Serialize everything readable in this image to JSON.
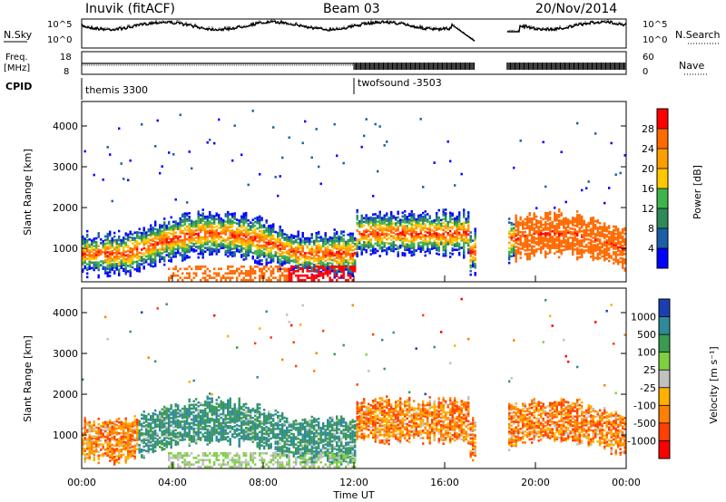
{
  "header": {
    "station": "Inuvik (fitACF)",
    "beam": "Beam 03",
    "date": "20/Nov/2014"
  },
  "top_panels": {
    "nsky_label": "N.Sky",
    "nsky_ticks": [
      "10^5",
      "10^0"
    ],
    "nsearch_label": "N.Search",
    "nsearch_ticks": [
      "10^5",
      "10^0"
    ],
    "freq_label_1": "Freq.",
    "freq_label_2": "[MHz]",
    "freq_ticks": [
      "18",
      "8"
    ],
    "nave_label": "Nave",
    "nave_ticks": [
      "60",
      "0"
    ],
    "cpid_label": "CPID",
    "cpid_segments": [
      {
        "name": "themis 3300",
        "start_hour": 0
      },
      {
        "name": "twofsound -3503",
        "start_hour": 12
      }
    ]
  },
  "chart_data": [
    {
      "type": "heatmap",
      "name": "power",
      "ylabel": "Slant Range [km]",
      "xlabel": "",
      "y_ticks": [
        "1000",
        "2000",
        "3000",
        "4000"
      ],
      "yrange_km": [
        180,
        4600
      ],
      "colorbar_label": "Power [dB]",
      "colorbar_ticks": [
        "28",
        "24",
        "20",
        "16",
        "12",
        "8",
        "4"
      ],
      "colorbar_colors": [
        "#ff0000",
        "#ff6a00",
        "#ff9e00",
        "#ffc800",
        "#3fb44a",
        "#2e8a58",
        "#1c5fa8",
        "#0000ff"
      ],
      "colormap_range": [
        0,
        32
      ]
    },
    {
      "type": "heatmap",
      "name": "velocity",
      "ylabel": "Slant Range [km]",
      "xlabel": "Time UT",
      "y_ticks": [
        "1000",
        "2000",
        "3000",
        "4000"
      ],
      "yrange_km": [
        180,
        4600
      ],
      "colorbar_label": "Velocity [m s⁻¹]",
      "colorbar_ticks": [
        "1000",
        "500",
        "100",
        "25",
        "-25",
        "-100",
        "-500",
        "-1000"
      ],
      "colorbar_colors": [
        "#1c3fb0",
        "#2e8a9a",
        "#3a9a50",
        "#7fd040",
        "#c0c0c0",
        "#ffb000",
        "#ff8000",
        "#ff4000",
        "#ff0000"
      ],
      "x_ticks": [
        "00:00",
        "04:00",
        "08:00",
        "12:00",
        "16:00",
        "20:00",
        "00:00"
      ],
      "xrange_hours": [
        0,
        24
      ]
    }
  ],
  "colors": {
    "trace": "#000000",
    "gap_start_hour": 17.35,
    "gap_end_hour": 18.75
  }
}
